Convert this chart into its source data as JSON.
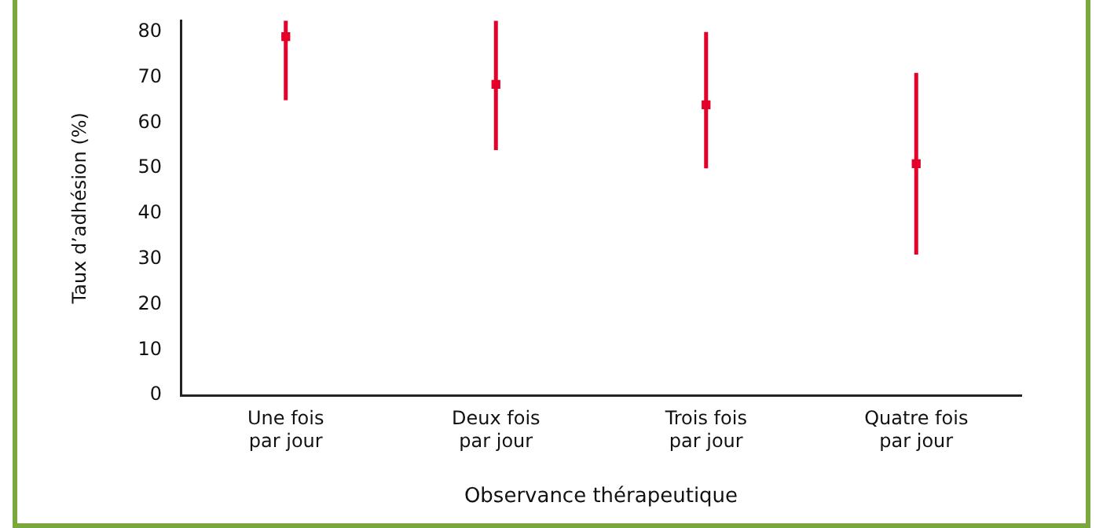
{
  "chart_data": {
    "type": "scatter",
    "xlabel": "Observance thérapeutique",
    "ylabel": "Taux d’adhésion (%)",
    "categories": [
      [
        "Une fois",
        "par jour"
      ],
      [
        "Deux fois",
        "par jour"
      ],
      [
        "Trois fois",
        "par jour"
      ],
      [
        "Quatre fois",
        "par jour"
      ]
    ],
    "series": [
      {
        "color": "#e4002b",
        "values": [
          79,
          68.5,
          64,
          51
        ],
        "errors": [
          [
            65,
            82.5
          ],
          [
            54,
            82.5
          ],
          [
            50,
            80
          ],
          [
            31,
            71
          ]
        ]
      }
    ],
    "ylim": [
      0,
      82.5
    ],
    "yticks": [
      0,
      10,
      20,
      30,
      40,
      50,
      60,
      70,
      80
    ],
    "grid": false,
    "legend": false
  }
}
